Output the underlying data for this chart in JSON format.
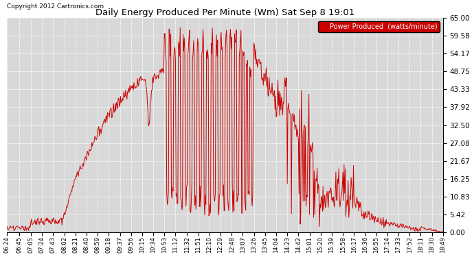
{
  "title": "Daily Energy Produced Per Minute (Wm) Sat Sep 8 19:01",
  "copyright": "Copyright 2012 Cartronics.com",
  "legend_label": "Power Produced  (watts/minute)",
  "legend_bg": "#cc0000",
  "legend_fg": "#ffffff",
  "line_color": "#cc0000",
  "bg_color": "#ffffff",
  "plot_bg": "#d8d8d8",
  "grid_color": "#ffffff",
  "ylim": [
    0,
    65.0
  ],
  "yticks": [
    0.0,
    5.42,
    10.83,
    16.25,
    21.67,
    27.08,
    32.5,
    37.92,
    43.33,
    48.75,
    54.17,
    59.58,
    65.0
  ],
  "xtick_labels": [
    "06:24",
    "06:45",
    "07:05",
    "07:24",
    "07:43",
    "08:02",
    "08:21",
    "08:40",
    "08:59",
    "09:18",
    "09:37",
    "09:56",
    "10:15",
    "10:34",
    "10:53",
    "11:12",
    "11:32",
    "11:51",
    "12:10",
    "12:29",
    "12:48",
    "13:07",
    "13:26",
    "13:45",
    "14:04",
    "14:23",
    "14:42",
    "15:01",
    "15:20",
    "15:39",
    "15:58",
    "16:17",
    "16:36",
    "16:55",
    "17:14",
    "17:33",
    "17:52",
    "18:11",
    "18:30",
    "18:49"
  ],
  "start_hhmm": "06:24",
  "end_hhmm": "18:49"
}
